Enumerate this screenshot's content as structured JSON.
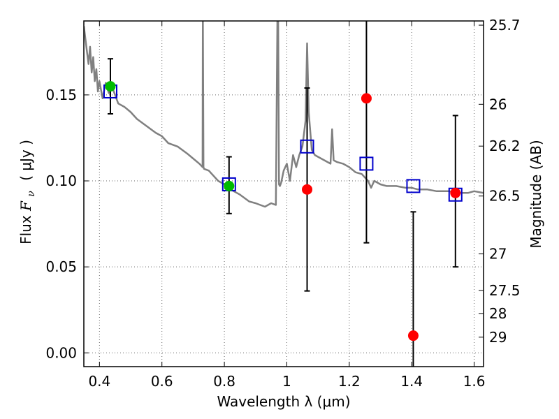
{
  "chart_data": {
    "type": "scatter",
    "xlabel": "Wavelength  λ (μm)",
    "ylabel": "Flux  F_ν  ( μJy )",
    "ylabel_parts": {
      "prefix": "Flux ",
      "symbol": "F",
      "subscript": "ν",
      "unit": "( μJy )"
    },
    "y2label": "Magnitude (AB)",
    "xlim": [
      0.35,
      1.63
    ],
    "ylim": [
      -0.008,
      0.193
    ],
    "grid": true,
    "x_ticks": [
      0.4,
      0.6,
      0.8,
      1.0,
      1.2,
      1.4,
      1.6
    ],
    "x_tick_labels": [
      "0.4",
      "0.6",
      "0.8",
      "1",
      "1.2",
      "1.4",
      "1.6"
    ],
    "y_ticks": [
      0.0,
      0.05,
      0.1,
      0.15
    ],
    "y_tick_labels": [
      "0.00",
      "0.05",
      "0.10",
      "0.15"
    ],
    "y2_tick_labels": [
      "25.7",
      "26",
      "26.2",
      "26.5",
      "27",
      "27.5",
      "28",
      "29"
    ],
    "colors": {
      "model": "#808080",
      "model_points": "#0000cc",
      "detections": "#00bb00",
      "upper_limits": "#ff0000",
      "errorbars": "#000000",
      "grid": "#666666"
    },
    "series": [
      {
        "kind": "model-spectrum",
        "x": [
          0.35,
          0.36,
          0.365,
          0.37,
          0.375,
          0.38,
          0.385,
          0.39,
          0.395,
          0.4,
          0.41,
          0.42,
          0.43,
          0.44,
          0.45,
          0.46,
          0.48,
          0.5,
          0.52,
          0.55,
          0.58,
          0.6,
          0.62,
          0.65,
          0.68,
          0.7,
          0.72,
          0.7302,
          0.731,
          0.733,
          0.735,
          0.75,
          0.78,
          0.8,
          0.82,
          0.85,
          0.88,
          0.9,
          0.93,
          0.95,
          0.965,
          0.97,
          0.972,
          0.975,
          0.978,
          0.982,
          0.99,
          1.0,
          1.01,
          1.02,
          1.03,
          1.04,
          1.05,
          1.06,
          1.065,
          1.07,
          1.08,
          1.09,
          1.1,
          1.12,
          1.14,
          1.145,
          1.15,
          1.16,
          1.18,
          1.2,
          1.22,
          1.24,
          1.26,
          1.27,
          1.28,
          1.3,
          1.32,
          1.35,
          1.38,
          1.4,
          1.42,
          1.45,
          1.48,
          1.5,
          1.52,
          1.55,
          1.58,
          1.6,
          1.63
        ],
        "y": [
          0.19,
          0.175,
          0.168,
          0.178,
          0.163,
          0.172,
          0.158,
          0.165,
          0.152,
          0.158,
          0.148,
          0.157,
          0.151,
          0.155,
          0.15,
          0.145,
          0.143,
          0.14,
          0.136,
          0.132,
          0.128,
          0.126,
          0.122,
          0.12,
          0.116,
          0.113,
          0.11,
          0.108,
          0.2,
          0.108,
          0.107,
          0.106,
          0.1,
          0.098,
          0.095,
          0.092,
          0.088,
          0.087,
          0.085,
          0.087,
          0.086,
          0.2,
          0.2,
          0.098,
          0.097,
          0.099,
          0.106,
          0.11,
          0.1,
          0.115,
          0.108,
          0.115,
          0.12,
          0.135,
          0.18,
          0.14,
          0.118,
          0.115,
          0.114,
          0.112,
          0.11,
          0.13,
          0.112,
          0.111,
          0.11,
          0.108,
          0.105,
          0.104,
          0.1,
          0.096,
          0.1,
          0.098,
          0.097,
          0.097,
          0.096,
          0.096,
          0.095,
          0.095,
          0.094,
          0.094,
          0.094,
          0.093,
          0.093,
          0.094,
          0.093
        ]
      },
      {
        "kind": "model-photometry",
        "x": [
          0.435,
          0.815,
          1.065,
          1.255,
          1.405,
          1.54
        ],
        "y": [
          0.152,
          0.098,
          0.12,
          0.11,
          0.097,
          0.092
        ]
      },
      {
        "kind": "detections",
        "x": [
          0.435,
          0.815
        ],
        "y": [
          0.155,
          0.097
        ],
        "yerr_low": [
          0.139,
          0.081
        ],
        "yerr_high": [
          0.171,
          0.114
        ]
      },
      {
        "kind": "weak-detections",
        "x": [
          1.065,
          1.255,
          1.405,
          1.54
        ],
        "y": [
          0.095,
          0.148,
          0.01,
          0.093
        ],
        "yerr_low": [
          0.036,
          0.064,
          -0.01,
          0.05
        ],
        "yerr_high": [
          0.154,
          0.2,
          0.082,
          0.138
        ]
      }
    ]
  }
}
